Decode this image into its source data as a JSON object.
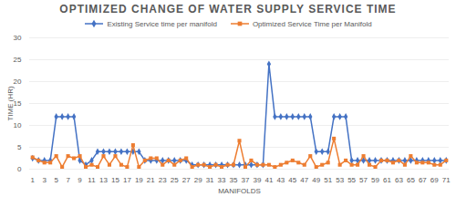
{
  "chart_data": {
    "type": "line",
    "title": "OPTIMIZED CHANGE OF WATER SUPPLY SERVICE TIME",
    "x_label": "MANIFOLDS",
    "y_label": "TIME (HR)",
    "categories": [
      1,
      null,
      3,
      null,
      5,
      null,
      7,
      null,
      9,
      null,
      11,
      null,
      13,
      null,
      15,
      null,
      17,
      null,
      19,
      null,
      21,
      null,
      23,
      null,
      25,
      null,
      27,
      null,
      29,
      null,
      31,
      null,
      33,
      null,
      35,
      null,
      37,
      null,
      39,
      null,
      41,
      null,
      43,
      null,
      45,
      null,
      47,
      null,
      49,
      null,
      51,
      null,
      53,
      null,
      55,
      null,
      57,
      null,
      59,
      null,
      61,
      null,
      63,
      null,
      65,
      null,
      67,
      null,
      69,
      null,
      71
    ],
    "series": [
      {
        "name": "Existing Service time per manifold",
        "color": "#4472c4",
        "marker": "diamond",
        "values": [
          2.5,
          2,
          2,
          2,
          12,
          12,
          12,
          12,
          2,
          1,
          2,
          4,
          4,
          4,
          4,
          4,
          4,
          4,
          4,
          2,
          2,
          2,
          2,
          2,
          2,
          2,
          2,
          1,
          1,
          1,
          1,
          1,
          1,
          1,
          1,
          1,
          1,
          1,
          1,
          1,
          24,
          12,
          12,
          12,
          12,
          12,
          12,
          12,
          4,
          4,
          4,
          12,
          12,
          12,
          2,
          2,
          2,
          2,
          2,
          2,
          2,
          2,
          2,
          2,
          2,
          2,
          2,
          2,
          2,
          2,
          2
        ]
      },
      {
        "name": "Optimized Service Time per Manifold",
        "color": "#ed7d31",
        "marker": "square",
        "values": [
          2.7,
          2,
          1.5,
          1.5,
          3,
          0.5,
          3,
          2.5,
          3,
          0.5,
          1,
          0.5,
          3,
          1,
          3,
          1,
          0.5,
          5.5,
          0.5,
          2,
          2.5,
          2.5,
          1,
          2,
          1,
          2,
          2.5,
          0.5,
          1,
          1,
          0.5,
          1,
          0.5,
          1,
          1,
          6.5,
          0.5,
          2,
          1,
          1,
          1,
          0.5,
          1,
          1.5,
          2,
          1.5,
          1,
          3,
          0.5,
          1,
          1.5,
          7,
          1,
          2,
          1,
          1,
          3,
          1,
          0.5,
          2,
          2,
          1.5,
          2,
          1,
          3,
          1.5,
          1.5,
          1.5,
          1,
          1,
          2
        ]
      }
    ],
    "ylim": [
      0,
      30
    ],
    "yticks": [
      0,
      5,
      10,
      15,
      20,
      25,
      30
    ],
    "grid": true,
    "legend": "top"
  }
}
